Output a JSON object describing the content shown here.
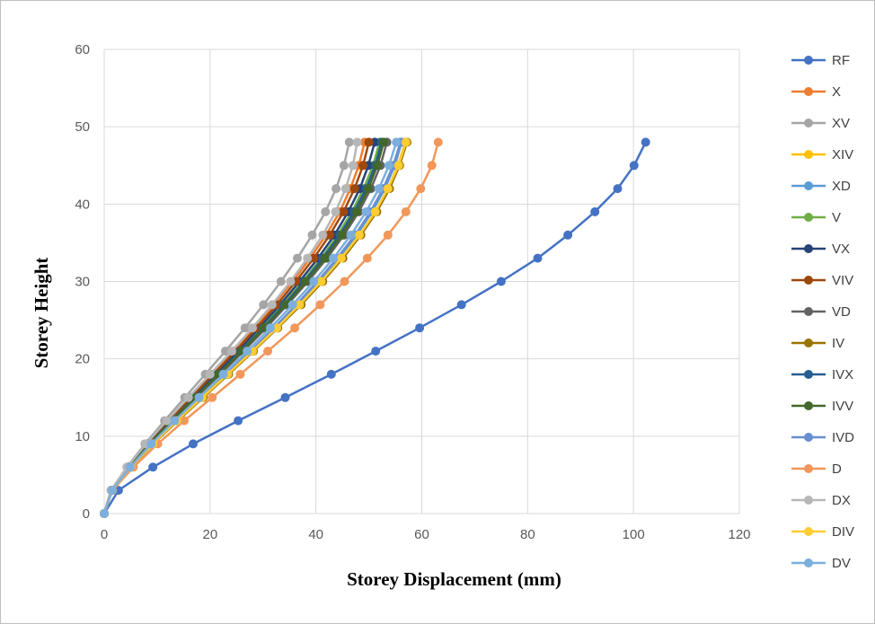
{
  "chart_data": {
    "type": "line",
    "title": "",
    "xlabel": "Storey Displacement (mm)",
    "ylabel": "Storey Height",
    "xlim": [
      0,
      120
    ],
    "ylim": [
      0,
      60
    ],
    "xticks": [
      0,
      20,
      40,
      60,
      80,
      100,
      120
    ],
    "yticks": [
      0,
      10,
      20,
      30,
      40,
      50,
      60
    ],
    "grid": true,
    "legend": "right",
    "y": [
      0,
      3,
      6,
      9,
      12,
      15,
      18,
      21,
      24,
      27,
      30,
      33,
      36,
      39,
      42,
      45,
      48
    ],
    "series": [
      {
        "name": "RF",
        "color": "#4472C4",
        "x": [
          0,
          2.7,
          9.2,
          16.8,
          25.3,
          34.2,
          42.9,
          51.3,
          59.6,
          67.5,
          75.0,
          81.9,
          87.6,
          92.7,
          97.0,
          100.1,
          102.3
        ]
      },
      {
        "name": "X",
        "color": "#ED7D31",
        "x": [
          0,
          1.3,
          4.5,
          8.1,
          12.1,
          16.2,
          20.3,
          24.4,
          28.4,
          32.0,
          35.6,
          38.9,
          41.9,
          44.5,
          46.5,
          48.1,
          49.2
        ]
      },
      {
        "name": "XV",
        "color": "#A5A5A5",
        "x": [
          0,
          1.3,
          4.3,
          7.7,
          11.4,
          15.2,
          19.1,
          22.9,
          26.6,
          30.1,
          33.4,
          36.5,
          39.3,
          41.8,
          43.8,
          45.3,
          46.3
        ]
      },
      {
        "name": "XIV",
        "color": "#FFC000",
        "x": [
          0,
          1.5,
          5.0,
          9.2,
          13.8,
          18.6,
          23.4,
          28.1,
          32.7,
          37.0,
          41.1,
          44.9,
          48.3,
          51.2,
          53.6,
          55.5,
          56.9
        ]
      },
      {
        "name": "XD",
        "color": "#5B9BD5",
        "x": [
          0,
          1.5,
          5.0,
          9.1,
          13.6,
          18.4,
          23.1,
          27.8,
          32.3,
          36.5,
          40.6,
          44.4,
          47.7,
          50.6,
          53.0,
          54.9,
          56.2
        ]
      },
      {
        "name": "V",
        "color": "#70AD47",
        "x": [
          0,
          1.4,
          4.7,
          8.5,
          12.6,
          16.9,
          21.3,
          25.6,
          29.8,
          33.7,
          37.5,
          41.0,
          44.1,
          46.8,
          49.0,
          50.8,
          52.0
        ]
      },
      {
        "name": "VX",
        "color": "#264478",
        "x": [
          0,
          1.4,
          4.6,
          8.3,
          12.4,
          16.7,
          21.0,
          25.2,
          29.3,
          33.2,
          36.9,
          40.4,
          43.5,
          46.1,
          48.3,
          49.9,
          51.1
        ]
      },
      {
        "name": "VIV",
        "color": "#9E480E",
        "x": [
          0,
          1.3,
          4.5,
          8.1,
          12.2,
          16.4,
          20.6,
          24.8,
          28.8,
          32.6,
          36.2,
          39.6,
          42.6,
          45.2,
          47.3,
          48.9,
          50.0
        ]
      },
      {
        "name": "VD",
        "color": "#636363",
        "x": [
          0,
          1.4,
          4.8,
          8.7,
          13.0,
          17.4,
          21.9,
          26.3,
          30.6,
          34.6,
          38.5,
          42.1,
          45.3,
          48.1,
          50.4,
          52.2,
          53.4
        ]
      },
      {
        "name": "IV",
        "color": "#997300",
        "x": [
          0,
          1.5,
          5.1,
          9.3,
          13.9,
          18.7,
          23.5,
          28.2,
          32.8,
          37.2,
          41.3,
          45.1,
          48.5,
          51.5,
          53.9,
          55.8,
          57.2
        ]
      },
      {
        "name": "IVX",
        "color": "#255E91",
        "x": [
          0,
          1.4,
          4.7,
          8.5,
          12.7,
          17.1,
          21.5,
          25.8,
          30.0,
          34.0,
          37.8,
          41.3,
          44.5,
          47.2,
          49.5,
          51.2,
          52.4
        ]
      },
      {
        "name": "IVV",
        "color": "#43682B",
        "x": [
          0,
          1.4,
          4.7,
          8.6,
          12.8,
          17.2,
          21.6,
          26.0,
          30.2,
          34.3,
          38.1,
          41.7,
          44.9,
          47.7,
          49.9,
          51.6,
          52.8
        ]
      },
      {
        "name": "IVD",
        "color": "#698ED0",
        "x": [
          0,
          1.5,
          5.0,
          9.1,
          13.6,
          18.3,
          23.0,
          27.6,
          32.1,
          36.3,
          40.3,
          44.0,
          47.4,
          50.3,
          52.7,
          54.6,
          56.0
        ]
      },
      {
        "name": "D",
        "color": "#F1975A",
        "x": [
          0,
          1.6,
          5.5,
          10.1,
          15.1,
          20.4,
          25.7,
          30.9,
          36.0,
          40.8,
          45.4,
          49.7,
          53.6,
          57.0,
          59.8,
          61.9,
          63.1
        ]
      },
      {
        "name": "DX",
        "color": "#B7B7B7",
        "x": [
          0,
          1.3,
          4.3,
          7.9,
          11.8,
          15.9,
          20.0,
          24.1,
          28.0,
          31.7,
          35.2,
          38.4,
          41.3,
          43.7,
          45.6,
          47.0,
          47.8
        ]
      },
      {
        "name": "DIV",
        "color": "#FFCD33",
        "x": [
          0,
          1.5,
          5.0,
          9.2,
          13.7,
          18.5,
          23.3,
          28.0,
          32.6,
          36.9,
          41.0,
          44.8,
          48.2,
          51.2,
          53.6,
          55.6,
          57.0
        ]
      },
      {
        "name": "DV",
        "color": "#7CAFDD",
        "x": [
          0,
          1.5,
          4.9,
          8.9,
          13.3,
          17.9,
          22.5,
          27.0,
          31.4,
          35.6,
          39.6,
          43.3,
          46.6,
          49.5,
          51.9,
          53.8,
          55.2
        ]
      }
    ]
  }
}
